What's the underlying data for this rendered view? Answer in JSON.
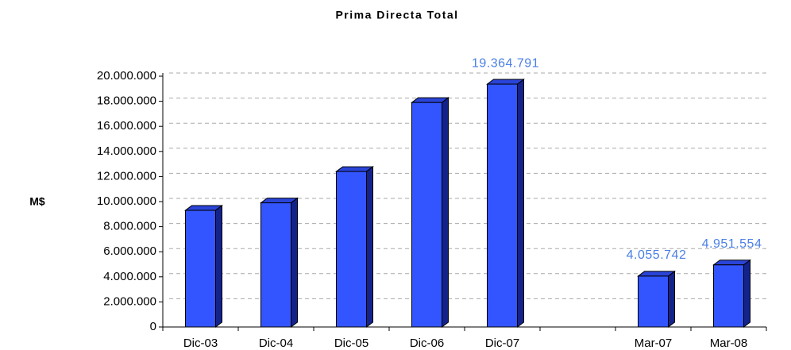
{
  "chart_data": {
    "type": "bar3d",
    "title": "Prima Directa Total",
    "y_label": "M$",
    "categories": [
      "Dic-03",
      "Dic-04",
      "Dic-05",
      "Dic-06",
      "Dic-07",
      null,
      "Mar-07",
      "Mar-08"
    ],
    "values": [
      9300000,
      9900000,
      12400000,
      17900000,
      19364791,
      null,
      4055742,
      4951554
    ],
    "value_labels": [
      null,
      null,
      null,
      null,
      "19.364.791",
      null,
      "4.055.742",
      "4.951.554"
    ],
    "color": "#3355ff",
    "ylim": [
      0,
      20000000
    ],
    "yticks": [
      0,
      {
        "value": 2000000,
        "label": "2.000.000"
      },
      {
        "value": 4000000,
        "label": "4.000.000"
      },
      {
        "value": 6000000,
        "label": "6.000.000"
      },
      {
        "value": 8000000,
        "label": "8.000.000"
      },
      {
        "value": 10000000,
        "label": "10.000.000"
      },
      {
        "value": 12000000,
        "label": "12.000.000"
      },
      {
        "value": 14000000,
        "label": "14.000.000"
      },
      {
        "value": 16000000,
        "label": "16.000.000"
      },
      {
        "value": 18000000,
        "label": "18.000.000"
      },
      {
        "value": 20000000,
        "label": "20.000.000"
      }
    ],
    "grid": true
  }
}
